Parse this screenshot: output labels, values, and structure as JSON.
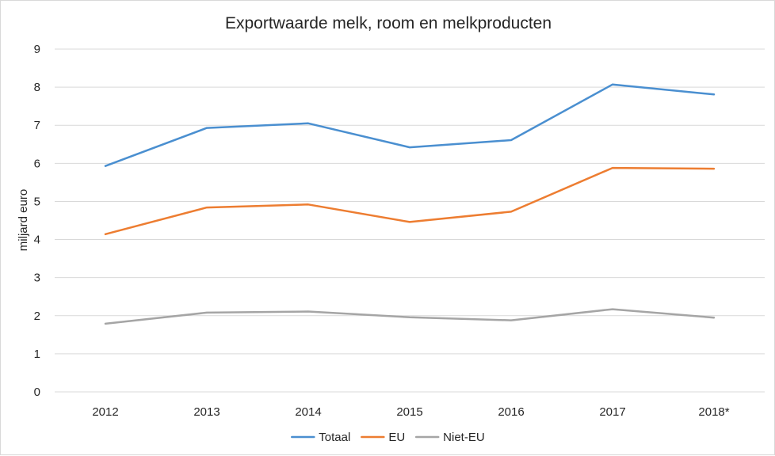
{
  "chart_data": {
    "type": "line",
    "title": "Exportwaarde melk, room en melkproducten",
    "xlabel": "",
    "ylabel": "miljard euro",
    "categories": [
      "2012",
      "2013",
      "2014",
      "2015",
      "2016",
      "2017",
      "2018*"
    ],
    "ylim": [
      0,
      9
    ],
    "yticks": [
      0,
      1,
      2,
      3,
      4,
      5,
      6,
      7,
      8,
      9
    ],
    "grid": true,
    "legend_position": "bottom",
    "series": [
      {
        "name": "Totaal",
        "color": "#4a8fd0",
        "values": [
          5.93,
          6.93,
          7.05,
          6.42,
          6.61,
          8.07,
          7.81
        ]
      },
      {
        "name": "EU",
        "color": "#ed7d31",
        "values": [
          4.14,
          4.84,
          4.92,
          4.46,
          4.73,
          5.88,
          5.86
        ]
      },
      {
        "name": "Niet-EU",
        "color": "#a5a5a5",
        "values": [
          1.79,
          2.08,
          2.11,
          1.96,
          1.88,
          2.17,
          1.95
        ]
      }
    ]
  }
}
